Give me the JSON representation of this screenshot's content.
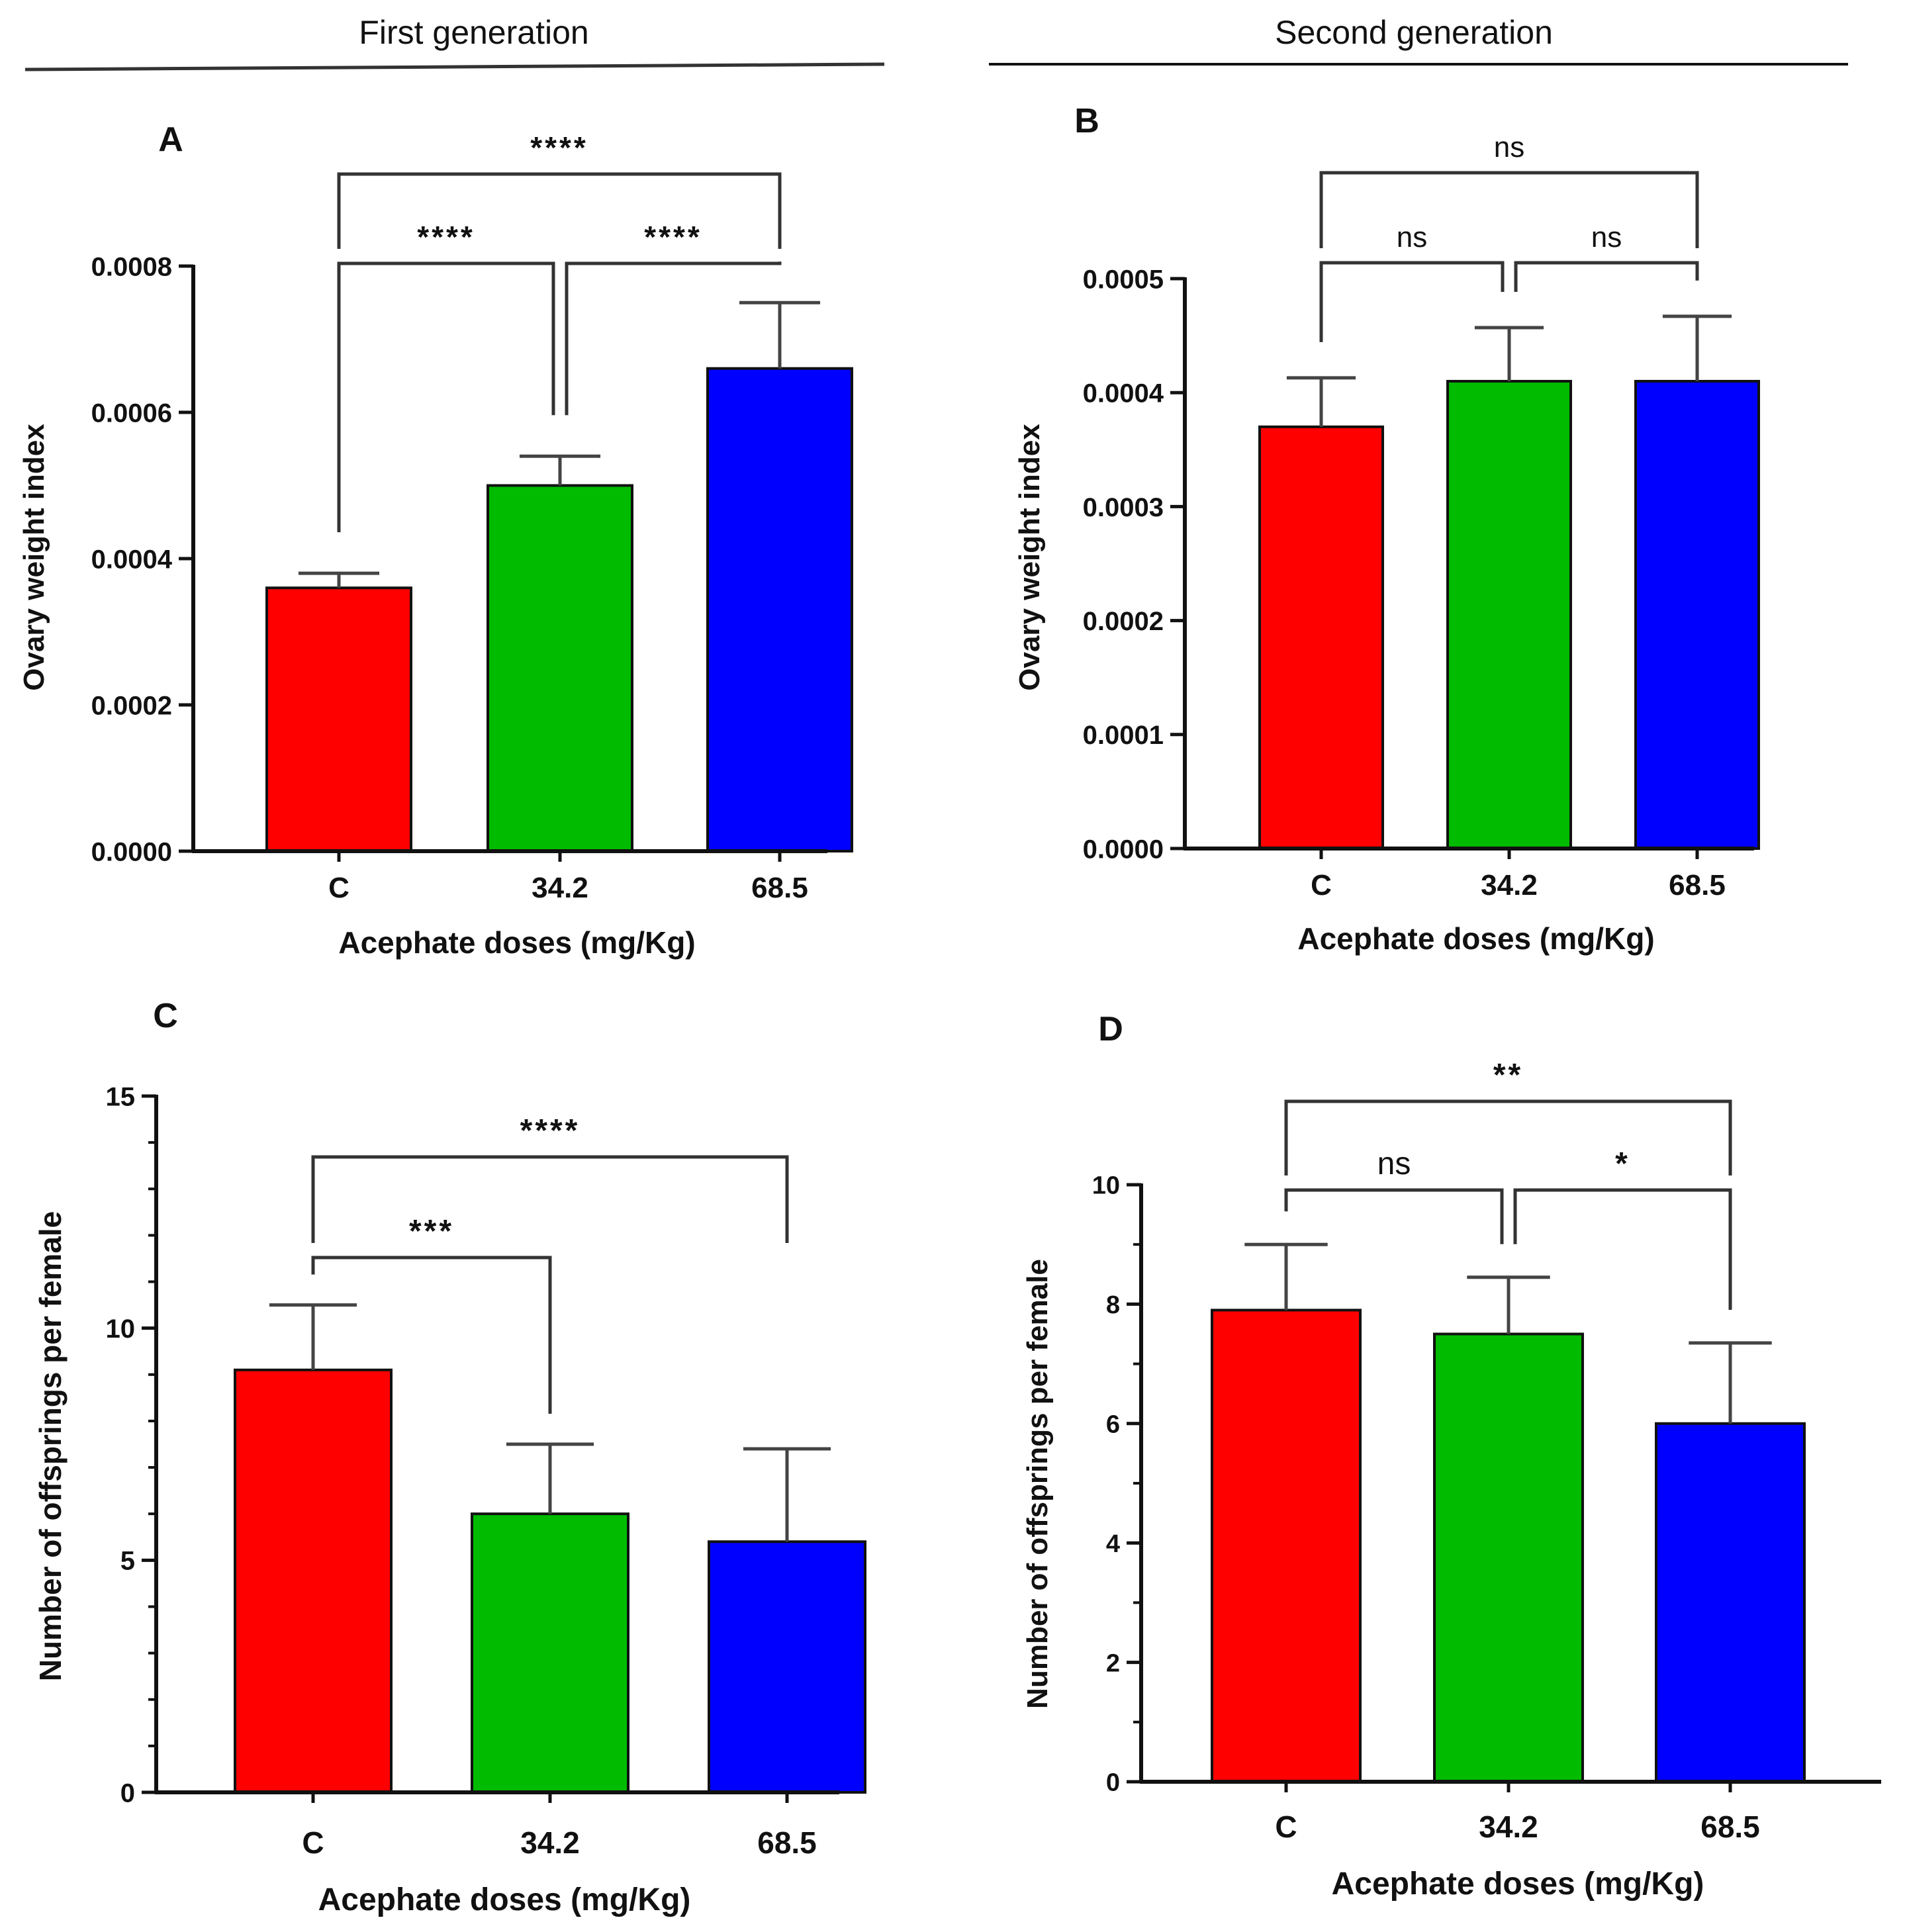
{
  "headers": {
    "first_generation": "First generation",
    "second_generation": "Second generation"
  },
  "colors": {
    "red": "#ff0000",
    "green": "#00bb00",
    "blue": "#0000ff",
    "axis": "#111111"
  },
  "chart_data": [
    {
      "panel": "A",
      "type": "bar",
      "title": "",
      "categories": [
        "C",
        "34.2",
        "68.5"
      ],
      "values": [
        0.00036,
        0.0005,
        0.00066
      ],
      "errors": [
        2e-05,
        4e-05,
        9e-05
      ],
      "bar_colors": [
        "#ff0000",
        "#00bb00",
        "#0000ff"
      ],
      "xlabel": "Acephate doses (mg/Kg)",
      "ylabel": "Ovary weight index",
      "ylim": [
        0,
        0.0008
      ],
      "yticks": [
        0,
        0.0002,
        0.0004,
        0.0006,
        0.0008
      ],
      "ytick_labels": [
        "0.0000",
        "0.0002",
        "0.0004",
        "0.0006",
        "0.0008"
      ],
      "minor_per_major": 1,
      "comparisons": [
        {
          "from": 0,
          "to": 1,
          "label": "****",
          "level": 1
        },
        {
          "from": 1,
          "to": 2,
          "label": "****",
          "level": 1
        },
        {
          "from": 0,
          "to": 2,
          "label": "****",
          "level": 2
        }
      ]
    },
    {
      "panel": "B",
      "type": "bar",
      "title": "",
      "categories": [
        "C",
        "34.2",
        "68.5"
      ],
      "values": [
        0.00037,
        0.00041,
        0.00041
      ],
      "errors": [
        4.3e-05,
        4.7e-05,
        5.7e-05
      ],
      "bar_colors": [
        "#ff0000",
        "#00bb00",
        "#0000ff"
      ],
      "xlabel": "Acephate doses (mg/Kg)",
      "ylabel": "Ovary weight index",
      "ylim": [
        0,
        0.0005
      ],
      "yticks": [
        0,
        0.0001,
        0.0002,
        0.0003,
        0.0004,
        0.0005
      ],
      "ytick_labels": [
        "0.0000",
        "0.0001",
        "0.0002",
        "0.0003",
        "0.0004",
        "0.0005"
      ],
      "minor_per_major": 1,
      "comparisons": [
        {
          "from": 0,
          "to": 1,
          "label": "ns",
          "level": 1
        },
        {
          "from": 1,
          "to": 2,
          "label": "ns",
          "level": 1
        },
        {
          "from": 0,
          "to": 2,
          "label": "ns",
          "level": 2
        }
      ]
    },
    {
      "panel": "C",
      "type": "bar",
      "title": "",
      "categories": [
        "C",
        "34.2",
        "68.5"
      ],
      "values": [
        9.1,
        6.0,
        5.4
      ],
      "errors": [
        1.4,
        1.5,
        2.0
      ],
      "bar_colors": [
        "#ff0000",
        "#00bb00",
        "#0000ff"
      ],
      "xlabel": "Acephate doses (mg/Kg)",
      "ylabel": "Number of offsprings per female",
      "ylim": [
        0,
        15
      ],
      "yticks": [
        0,
        5,
        10,
        15
      ],
      "ytick_labels": [
        "0",
        "5",
        "10",
        "15"
      ],
      "minor_per_major": 5,
      "comparisons": [
        {
          "from": 0,
          "to": 1,
          "label": "***",
          "level": 1
        },
        {
          "from": 0,
          "to": 2,
          "label": "****",
          "level": 2
        }
      ]
    },
    {
      "panel": "D",
      "type": "bar",
      "title": "",
      "categories": [
        "C",
        "34.2",
        "68.5"
      ],
      "values": [
        7.9,
        7.5,
        6.0
      ],
      "errors": [
        1.1,
        0.95,
        1.35
      ],
      "bar_colors": [
        "#ff0000",
        "#00bb00",
        "#0000ff"
      ],
      "xlabel": "Acephate doses (mg/Kg)",
      "ylabel": "Number of offsprings per female",
      "ylim": [
        0,
        10
      ],
      "yticks": [
        0,
        2,
        4,
        6,
        8,
        10
      ],
      "ytick_labels": [
        "0",
        "2",
        "4",
        "6",
        "8",
        "10"
      ],
      "minor_per_major": 2,
      "comparisons": [
        {
          "from": 0,
          "to": 1,
          "label": "ns",
          "level": 1
        },
        {
          "from": 1,
          "to": 2,
          "label": "*",
          "level": 1
        },
        {
          "from": 0,
          "to": 2,
          "label": "**",
          "level": 2
        }
      ]
    }
  ]
}
